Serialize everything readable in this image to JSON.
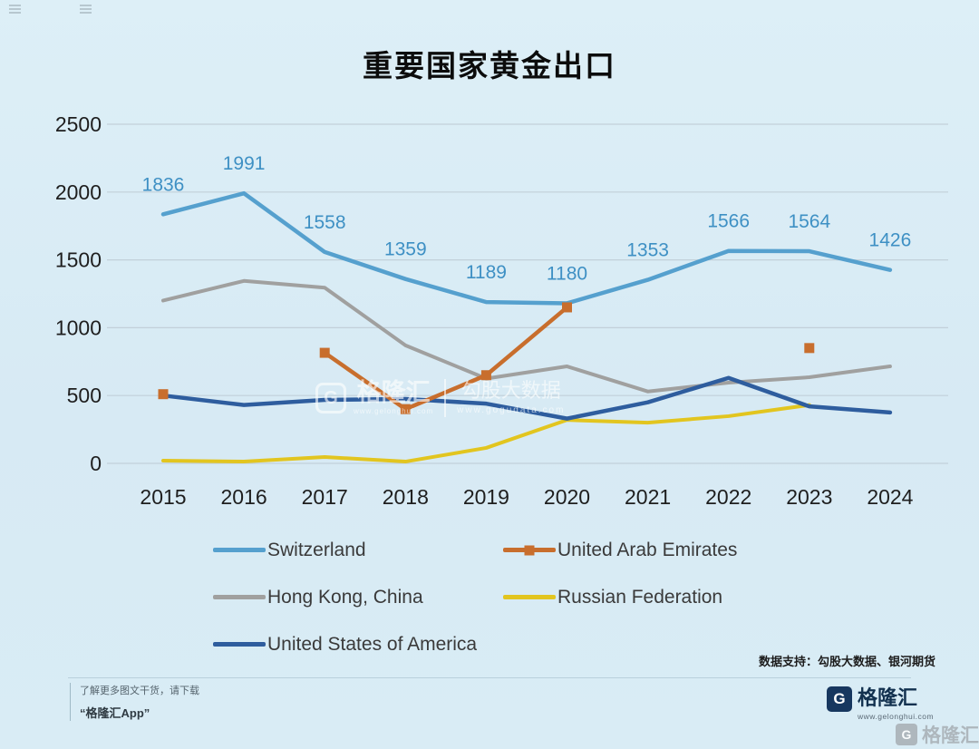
{
  "chart_data": {
    "type": "line",
    "title": "重要国家黄金出口",
    "xlabel": "",
    "ylabel": "",
    "categories": [
      "2015",
      "2016",
      "2017",
      "2018",
      "2019",
      "2020",
      "2021",
      "2022",
      "2023",
      "2024"
    ],
    "ylim": [
      0,
      2500
    ],
    "yticks": [
      0,
      500,
      1000,
      1500,
      2000,
      2500
    ],
    "grid": true,
    "legend_position": "bottom",
    "series": [
      {
        "name": "Hong Kong, China",
        "color": "#a0a09f",
        "width": 4,
        "values": [
          1200,
          1345,
          1295,
          870,
          625,
          715,
          530,
          595,
          635,
          715
        ]
      },
      {
        "name": "Russian Federation",
        "color": "#e2c51f",
        "width": 4,
        "values": [
          20,
          13,
          47,
          13,
          114,
          320,
          300,
          348,
          430,
          null
        ]
      },
      {
        "name": "United States of America",
        "color": "#2e5d9e",
        "width": 4.5,
        "values": [
          500,
          430,
          468,
          475,
          440,
          330,
          450,
          630,
          420,
          375
        ]
      },
      {
        "name": "Switzerland",
        "color": "#55a0ce",
        "width": 4.5,
        "data_labels": true,
        "label_color": "#3e90c4",
        "values": [
          1836,
          1991,
          1558,
          1359,
          1189,
          1180,
          1353,
          1566,
          1564,
          1426
        ]
      },
      {
        "name": "United Arab Emirates",
        "color": "#c86e2d",
        "width": 4.5,
        "marker": "square",
        "values": [
          510,
          null,
          815,
          400,
          650,
          1150,
          null,
          null,
          850,
          null
        ]
      }
    ],
    "legend_order": [
      "Switzerland",
      "United Arab Emirates",
      "Hong Kong, China",
      "Russian Federation",
      "United States of America"
    ]
  },
  "watermark": {
    "logo_letter": "G",
    "brand": "格隆汇",
    "brand_url": "www.gelonghui.com",
    "source": "勾股大数据",
    "source_url": "www.gogudata.com"
  },
  "footer": {
    "data_support": "数据支持：勾股大数据、银河期货",
    "promo_line1": "了解更多图文干货，请下载",
    "promo_line2": "“格隆汇App”",
    "logo_letter": "G",
    "brand": "格隆汇",
    "brand_url": "www.gelonghui.com",
    "corner_brand": "格隆汇"
  }
}
